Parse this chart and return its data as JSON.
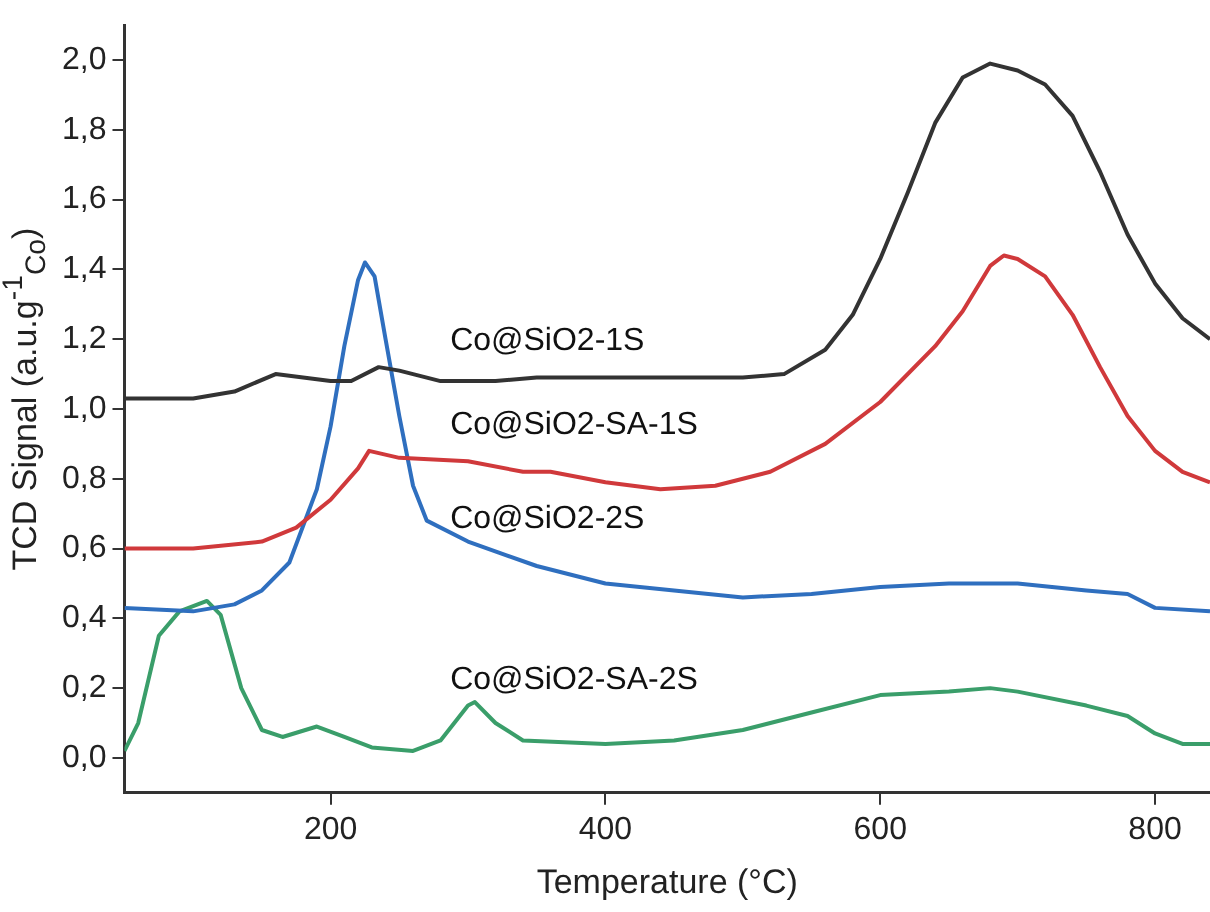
{
  "chart_data": {
    "type": "line",
    "xlabel": "Temperature (°C)",
    "ylabel": "TCD Signal (a.u.g$^{-1}$$_{Co}$)",
    "xlim": [
      50,
      840
    ],
    "xticks": [
      200,
      400,
      600,
      800
    ],
    "ylim": [
      -0.1,
      2.1
    ],
    "yticks": [
      {
        "value": 0,
        "label": "0,0"
      },
      {
        "value": 0.2,
        "label": "0,2"
      },
      {
        "value": 0.4,
        "label": "0,4"
      },
      {
        "value": 0.6,
        "label": "0,6"
      },
      {
        "value": 0.8,
        "label": "0,8"
      },
      {
        "value": 1.0,
        "label": "1,0"
      },
      {
        "value": 1.2,
        "label": "1,2"
      },
      {
        "value": 1.4,
        "label": "1,4"
      },
      {
        "value": 1.6,
        "label": "1,6"
      },
      {
        "value": 1.8,
        "label": "1,8"
      },
      {
        "value": 2.0,
        "label": "2,0"
      }
    ],
    "grid": false,
    "legend": false,
    "marker": "none",
    "line_style": "solid",
    "series": [
      {
        "name": "Co@SiO2-1S",
        "color": "#333333",
        "x": [
          50,
          100,
          130,
          160,
          200,
          215,
          235,
          250,
          280,
          320,
          350,
          400,
          450,
          500,
          530,
          560,
          580,
          600,
          620,
          640,
          660,
          680,
          700,
          720,
          740,
          760,
          780,
          800,
          820,
          840
        ],
        "values": [
          1.03,
          1.03,
          1.05,
          1.1,
          1.08,
          1.08,
          1.12,
          1.11,
          1.08,
          1.08,
          1.09,
          1.09,
          1.09,
          1.09,
          1.1,
          1.17,
          1.27,
          1.43,
          1.62,
          1.82,
          1.95,
          1.99,
          1.97,
          1.93,
          1.84,
          1.68,
          1.5,
          1.36,
          1.26,
          1.2
        ]
      },
      {
        "name": "Co@SiO2-SA-1S",
        "color": "#d0393b",
        "x": [
          50,
          100,
          150,
          175,
          200,
          220,
          228,
          250,
          300,
          340,
          360,
          400,
          440,
          480,
          520,
          560,
          600,
          640,
          660,
          680,
          690,
          700,
          720,
          740,
          760,
          780,
          800,
          820,
          840
        ],
        "values": [
          0.6,
          0.6,
          0.62,
          0.66,
          0.74,
          0.83,
          0.88,
          0.86,
          0.85,
          0.82,
          0.82,
          0.79,
          0.77,
          0.78,
          0.82,
          0.9,
          1.02,
          1.18,
          1.28,
          1.41,
          1.44,
          1.43,
          1.38,
          1.27,
          1.12,
          0.98,
          0.88,
          0.82,
          0.79
        ]
      },
      {
        "name": "Co@SiO2-2S",
        "color": "#2f6fbf",
        "x": [
          50,
          100,
          130,
          150,
          170,
          190,
          200,
          210,
          220,
          225,
          232,
          240,
          250,
          260,
          270,
          300,
          350,
          400,
          450,
          500,
          550,
          600,
          650,
          700,
          750,
          780,
          800,
          840
        ],
        "values": [
          0.43,
          0.42,
          0.44,
          0.48,
          0.56,
          0.77,
          0.95,
          1.18,
          1.37,
          1.42,
          1.38,
          1.2,
          0.98,
          0.78,
          0.68,
          0.62,
          0.55,
          0.5,
          0.48,
          0.46,
          0.47,
          0.49,
          0.5,
          0.5,
          0.48,
          0.47,
          0.43,
          0.42
        ]
      },
      {
        "name": "Co@SiO2-SA-2S",
        "color": "#3a9e6a",
        "x": [
          50,
          60,
          75,
          90,
          110,
          120,
          135,
          150,
          165,
          190,
          210,
          230,
          260,
          280,
          300,
          305,
          320,
          340,
          400,
          450,
          500,
          550,
          600,
          650,
          680,
          700,
          750,
          780,
          800,
          820,
          840
        ],
        "values": [
          0.02,
          0.1,
          0.35,
          0.42,
          0.45,
          0.41,
          0.2,
          0.08,
          0.06,
          0.09,
          0.06,
          0.03,
          0.02,
          0.05,
          0.15,
          0.16,
          0.1,
          0.05,
          0.04,
          0.05,
          0.08,
          0.13,
          0.18,
          0.19,
          0.2,
          0.19,
          0.15,
          0.12,
          0.07,
          0.04,
          0.04
        ]
      }
    ]
  }
}
